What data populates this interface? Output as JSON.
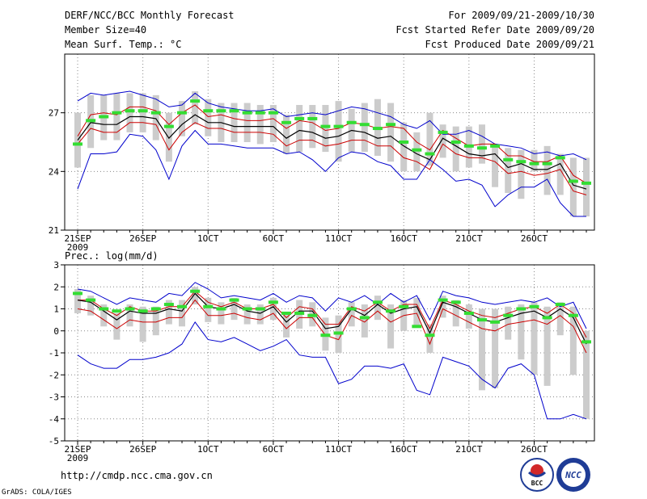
{
  "header": {
    "title": "DERF/NCC/BCC Monthly Forecast",
    "member_size": "Member Size=40",
    "variable": "Mean Surf. Temp.: °C",
    "period": "For 2009/09/21-2009/10/30",
    "start_date": "Fcst Started Refer Date 2009/09/20",
    "produced_date": "Fcst Produced Date 2009/09/21"
  },
  "colors": {
    "grid": "#888888",
    "box": "#cccccc",
    "mean": "#000000",
    "spread": "#cc0000",
    "extreme": "#0000cc",
    "marker": "#33dd33"
  },
  "footer": {
    "url": "http://cmdp.ncc.cma.gov.cn",
    "credit": "GrADS: COLA/IGES",
    "logo_left": "BCC",
    "logo_right": "NCC"
  },
  "chart_data": [
    {
      "type": "line",
      "title": "Mean Surf. Temp.: °C",
      "ylim": [
        21,
        30
      ],
      "yticks": [
        "21",
        "24",
        "27"
      ],
      "ytick_values": [
        21,
        24,
        27
      ],
      "xtick_labels": [
        "21SEP",
        "26SEP",
        "1OCT",
        "6OCT",
        "11OCT",
        "16OCT",
        "21OCT",
        "26OCT"
      ],
      "xtick_days": [
        0,
        5,
        10,
        15,
        20,
        25,
        30,
        35
      ],
      "xsub_label": "2009",
      "x": [
        0,
        1,
        2,
        3,
        4,
        5,
        6,
        7,
        8,
        9,
        10,
        11,
        12,
        13,
        14,
        15,
        16,
        17,
        18,
        19,
        20,
        21,
        22,
        23,
        24,
        25,
        26,
        27,
        28,
        29,
        30,
        31,
        32,
        33,
        34,
        35,
        36,
        37,
        38,
        39
      ],
      "series": [
        {
          "name": "max",
          "values": [
            27.6,
            28.0,
            27.9,
            28.0,
            28.1,
            27.9,
            27.7,
            27.3,
            27.4,
            28.0,
            27.5,
            27.3,
            27.2,
            27.1,
            27.1,
            27.2,
            26.8,
            26.9,
            27.0,
            26.9,
            27.1,
            27.3,
            27.2,
            27.0,
            26.8,
            26.4,
            26.2,
            26.6,
            25.9,
            25.9,
            26.1,
            25.8,
            25.4,
            25.3,
            25.2,
            24.9,
            25.0,
            24.8,
            24.9,
            24.6
          ]
        },
        {
          "name": "upper",
          "values": [
            25.8,
            26.9,
            27.0,
            26.9,
            27.3,
            27.3,
            27.1,
            26.4,
            27.0,
            27.4,
            26.8,
            26.9,
            26.7,
            26.6,
            26.6,
            26.7,
            26.2,
            26.6,
            26.5,
            26.1,
            26.2,
            26.5,
            26.4,
            26.2,
            26.3,
            26.2,
            25.5,
            25.1,
            26.1,
            25.7,
            25.3,
            25.4,
            25.4,
            24.8,
            24.8,
            24.5,
            24.5,
            24.8,
            23.8,
            23.4
          ]
        },
        {
          "name": "mean",
          "values": [
            25.6,
            26.5,
            26.4,
            26.4,
            26.8,
            26.8,
            26.7,
            25.7,
            26.4,
            26.9,
            26.5,
            26.5,
            26.3,
            26.3,
            26.3,
            26.3,
            25.7,
            26.1,
            26.0,
            25.7,
            25.8,
            26.1,
            26.0,
            25.7,
            25.8,
            25.3,
            24.9,
            24.6,
            25.7,
            25.3,
            24.9,
            24.8,
            24.9,
            24.2,
            24.4,
            24.1,
            24.1,
            24.4,
            23.3,
            23.1
          ]
        },
        {
          "name": "lower",
          "values": [
            25.4,
            26.2,
            26.0,
            26.0,
            26.5,
            26.5,
            26.4,
            25.1,
            26.0,
            26.5,
            26.2,
            26.2,
            26.0,
            26.0,
            26.0,
            25.9,
            25.3,
            25.6,
            25.6,
            25.3,
            25.4,
            25.6,
            25.6,
            25.3,
            25.3,
            24.7,
            24.5,
            24.1,
            25.4,
            24.9,
            24.7,
            24.7,
            24.5,
            23.9,
            24.0,
            23.8,
            23.9,
            24.1,
            23.0,
            22.8
          ]
        },
        {
          "name": "min",
          "values": [
            23.1,
            24.9,
            24.9,
            25.0,
            25.9,
            25.8,
            25.1,
            23.6,
            25.3,
            26.1,
            25.4,
            25.4,
            25.3,
            25.2,
            25.2,
            25.2,
            24.9,
            25.0,
            24.6,
            24.0,
            24.7,
            25.0,
            24.9,
            24.5,
            24.3,
            23.6,
            23.6,
            24.6,
            24.1,
            23.5,
            23.6,
            23.3,
            22.2,
            22.8,
            23.2,
            23.2,
            23.6,
            22.4,
            21.7,
            21.7
          ]
        },
        {
          "name": "ensemble-member",
          "values": [
            25.4,
            26.6,
            26.8,
            27.0,
            27.1,
            27.1,
            27.0,
            26.3,
            27.0,
            27.6,
            27.1,
            27.1,
            27.1,
            27.0,
            27.0,
            27.0,
            26.5,
            26.7,
            26.7,
            26.3,
            26.3,
            26.5,
            26.4,
            26.2,
            26.4,
            25.5,
            25.1,
            24.9,
            26.0,
            25.5,
            25.3,
            25.2,
            25.3,
            24.6,
            24.5,
            24.4,
            24.4,
            24.7,
            23.5,
            23.4
          ]
        }
      ],
      "box_top": [
        27.0,
        27.9,
        27.9,
        28.0,
        28.0,
        28.0,
        27.9,
        27.0,
        27.6,
        28.1,
        27.7,
        27.5,
        27.5,
        27.5,
        27.4,
        27.4,
        26.9,
        27.4,
        27.4,
        27.4,
        27.6,
        27.2,
        27.5,
        27.7,
        27.5,
        26.5,
        26.0,
        27.0,
        26.4,
        26.3,
        26.3,
        26.4,
        25.4,
        25.2,
        25.1,
        25.1,
        25.3,
        24.9,
        24.7,
        24.7
      ],
      "box_bottom": [
        24.2,
        25.2,
        25.6,
        25.6,
        26.0,
        26.0,
        25.6,
        24.5,
        25.8,
        26.4,
        25.8,
        25.5,
        25.5,
        25.5,
        25.4,
        25.5,
        24.9,
        25.0,
        25.2,
        25.0,
        24.5,
        25.0,
        25.0,
        24.8,
        24.5,
        24.0,
        24.0,
        24.3,
        24.7,
        24.0,
        24.2,
        24.4,
        23.2,
        22.9,
        22.6,
        24.0,
        22.8,
        22.8,
        21.7,
        21.7
      ]
    },
    {
      "type": "line",
      "title": "Prec.: log(mm/d)",
      "ylim": [
        -5,
        3
      ],
      "yticks": [
        "-5",
        "-4",
        "-3",
        "-2",
        "-1",
        "0",
        "1",
        "2",
        "3"
      ],
      "ytick_values": [
        -5,
        -4,
        -3,
        -2,
        -1,
        0,
        1,
        2,
        3
      ],
      "xtick_labels": [
        "21SEP",
        "26SEP",
        "1OCT",
        "6OCT",
        "11OCT",
        "16OCT",
        "21OCT",
        "26OCT"
      ],
      "xtick_days": [
        0,
        5,
        10,
        15,
        20,
        25,
        30,
        35
      ],
      "xsub_label": "2009",
      "x": [
        0,
        1,
        2,
        3,
        4,
        5,
        6,
        7,
        8,
        9,
        10,
        11,
        12,
        13,
        14,
        15,
        16,
        17,
        18,
        19,
        20,
        21,
        22,
        23,
        24,
        25,
        26,
        27,
        28,
        29,
        30,
        31,
        32,
        33,
        34,
        35,
        36,
        37,
        38,
        39
      ],
      "series": [
        {
          "name": "max",
          "values": [
            1.9,
            1.8,
            1.5,
            1.2,
            1.5,
            1.4,
            1.3,
            1.7,
            1.6,
            2.2,
            1.9,
            1.5,
            1.6,
            1.5,
            1.4,
            1.7,
            1.3,
            1.6,
            1.5,
            0.9,
            1.5,
            1.3,
            1.6,
            1.2,
            1.7,
            1.3,
            1.6,
            0.5,
            1.8,
            1.6,
            1.5,
            1.3,
            1.2,
            1.3,
            1.4,
            1.3,
            1.5,
            1.1,
            1.3,
            0.1
          ]
        },
        {
          "name": "upper",
          "values": [
            1.4,
            1.4,
            1.0,
            0.7,
            1.1,
            0.9,
            0.9,
            1.1,
            1.1,
            1.8,
            1.3,
            1.1,
            1.3,
            1.0,
            1.0,
            1.2,
            0.6,
            1.1,
            1.0,
            0.3,
            0.3,
            1.1,
            0.9,
            1.3,
            0.9,
            1.2,
            1.2,
            0.1,
            1.4,
            1.2,
            0.9,
            0.7,
            0.6,
            0.8,
            1.0,
            1.1,
            0.8,
            1.2,
            0.8,
            -0.3
          ]
        },
        {
          "name": "mean",
          "values": [
            1.4,
            1.3,
            0.9,
            0.5,
            0.9,
            0.8,
            0.8,
            1.0,
            0.9,
            1.7,
            1.1,
            1.0,
            1.2,
            0.9,
            0.8,
            1.1,
            0.4,
            0.9,
            0.9,
            0.1,
            0.2,
            1.0,
            0.7,
            1.2,
            0.8,
            1.0,
            1.1,
            -0.1,
            1.3,
            1.1,
            0.8,
            0.5,
            0.4,
            0.6,
            0.8,
            0.9,
            0.6,
            1.0,
            0.6,
            -0.6
          ]
        },
        {
          "name": "lower",
          "values": [
            1.0,
            0.9,
            0.5,
            0.1,
            0.5,
            0.4,
            0.4,
            0.6,
            0.6,
            1.4,
            0.7,
            0.7,
            0.8,
            0.6,
            0.5,
            0.8,
            0.1,
            0.6,
            0.6,
            -0.2,
            -0.4,
            0.7,
            0.4,
            0.9,
            0.4,
            0.7,
            0.8,
            -0.6,
            1.0,
            0.7,
            0.4,
            0.1,
            0.0,
            0.3,
            0.4,
            0.5,
            0.3,
            0.7,
            0.2,
            -1.0
          ]
        },
        {
          "name": "min",
          "values": [
            -1.1,
            -1.5,
            -1.7,
            -1.7,
            -1.3,
            -1.3,
            -1.2,
            -1.0,
            -0.6,
            0.4,
            -0.4,
            -0.5,
            -0.3,
            -0.6,
            -0.9,
            -0.7,
            -0.4,
            -1.1,
            -1.2,
            -1.2,
            -2.4,
            -2.2,
            -1.6,
            -1.6,
            -1.7,
            -1.5,
            -2.7,
            -2.9,
            -1.2,
            -1.4,
            -1.6,
            -2.2,
            -2.6,
            -1.7,
            -1.5,
            -2.0,
            -4.0,
            -4.0,
            -3.8,
            -4.0
          ]
        },
        {
          "name": "ensemble-member",
          "values": [
            1.7,
            1.4,
            1.0,
            0.9,
            1.0,
            0.9,
            1.0,
            1.2,
            1.1,
            1.8,
            1.1,
            1.0,
            1.4,
            1.0,
            1.0,
            1.3,
            0.8,
            0.8,
            0.7,
            -0.2,
            -0.1,
            1.0,
            0.6,
            1.3,
            0.9,
            1.1,
            0.2,
            -0.2,
            1.4,
            1.3,
            0.8,
            0.5,
            0.4,
            0.7,
            1.0,
            1.1,
            0.6,
            1.2,
            0.7,
            -0.5
          ]
        }
      ],
      "box_top": [
        1.9,
        1.6,
        1.2,
        0.8,
        1.2,
        1.1,
        1.1,
        1.4,
        1.4,
        2.0,
        1.5,
        1.3,
        1.5,
        1.2,
        1.2,
        1.5,
        0.8,
        1.4,
        1.3,
        0.6,
        0.7,
        1.3,
        1.2,
        1.6,
        1.2,
        1.4,
        1.5,
        0.3,
        1.6,
        1.4,
        1.2,
        1.0,
        1.0,
        1.1,
        1.2,
        1.3,
        1.1,
        1.3,
        1.1,
        0.0
      ],
      "box_bottom": [
        0.8,
        0.7,
        0.2,
        -0.4,
        0.2,
        -0.5,
        -0.2,
        0.3,
        0.2,
        1.2,
        0.4,
        0.3,
        0.5,
        0.3,
        0.3,
        0.5,
        -0.3,
        0.1,
        0.2,
        -0.9,
        -1.0,
        0.2,
        -0.3,
        0.5,
        -0.8,
        0.0,
        0.2,
        -1.0,
        0.6,
        0.2,
        0.1,
        -2.7,
        -2.6,
        -0.4,
        -1.3,
        -2.0,
        -2.5,
        -0.2,
        -2.0,
        -4.0
      ]
    }
  ]
}
